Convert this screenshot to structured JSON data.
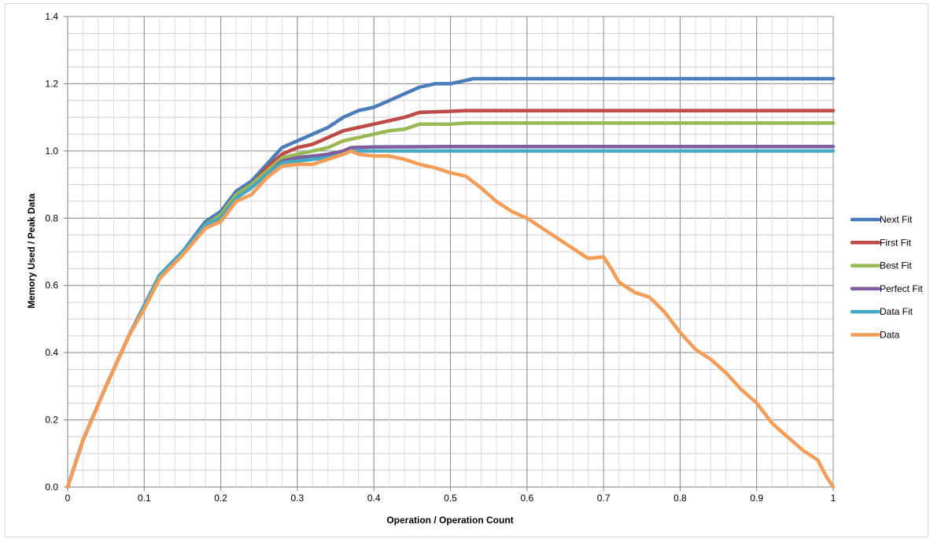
{
  "chart_data": {
    "type": "line",
    "title": "",
    "xlabel": "Operation / Operation Count",
    "ylabel": "Memory Used / Peak Data",
    "xlim": [
      0,
      1
    ],
    "ylim": [
      0,
      1.4
    ],
    "x_ticks": [
      "0",
      "0.1",
      "0.2",
      "0.3",
      "0.4",
      "0.5",
      "0.6",
      "0.7",
      "0.8",
      "0.9",
      "1"
    ],
    "y_ticks": [
      "0.0",
      "0.2",
      "0.4",
      "0.6",
      "0.8",
      "1.0",
      "1.2",
      "1.4"
    ],
    "grid": true,
    "legend_position": "right",
    "series": [
      {
        "name": "Next Fit",
        "color": "#4a7ebb",
        "points": [
          [
            0,
            0
          ],
          [
            0.02,
            0.14
          ],
          [
            0.05,
            0.3
          ],
          [
            0.08,
            0.45
          ],
          [
            0.1,
            0.54
          ],
          [
            0.12,
            0.63
          ],
          [
            0.15,
            0.7
          ],
          [
            0.18,
            0.79
          ],
          [
            0.2,
            0.82
          ],
          [
            0.22,
            0.88
          ],
          [
            0.24,
            0.91
          ],
          [
            0.26,
            0.96
          ],
          [
            0.28,
            1.01
          ],
          [
            0.3,
            1.03
          ],
          [
            0.32,
            1.05
          ],
          [
            0.34,
            1.07
          ],
          [
            0.36,
            1.1
          ],
          [
            0.38,
            1.12
          ],
          [
            0.4,
            1.13
          ],
          [
            0.42,
            1.15
          ],
          [
            0.44,
            1.17
          ],
          [
            0.46,
            1.19
          ],
          [
            0.48,
            1.2
          ],
          [
            0.5,
            1.2
          ],
          [
            0.52,
            1.21
          ],
          [
            0.53,
            1.215
          ],
          [
            0.6,
            1.215
          ],
          [
            0.8,
            1.215
          ],
          [
            1,
            1.215
          ]
        ]
      },
      {
        "name": "First Fit",
        "color": "#be4b48",
        "points": [
          [
            0,
            0
          ],
          [
            0.02,
            0.14
          ],
          [
            0.05,
            0.3
          ],
          [
            0.08,
            0.45
          ],
          [
            0.1,
            0.54
          ],
          [
            0.12,
            0.63
          ],
          [
            0.15,
            0.7
          ],
          [
            0.18,
            0.78
          ],
          [
            0.2,
            0.81
          ],
          [
            0.22,
            0.87
          ],
          [
            0.24,
            0.9
          ],
          [
            0.26,
            0.95
          ],
          [
            0.28,
            0.99
          ],
          [
            0.3,
            1.01
          ],
          [
            0.32,
            1.02
          ],
          [
            0.34,
            1.04
          ],
          [
            0.36,
            1.06
          ],
          [
            0.38,
            1.07
          ],
          [
            0.4,
            1.08
          ],
          [
            0.42,
            1.09
          ],
          [
            0.44,
            1.1
          ],
          [
            0.46,
            1.115
          ],
          [
            0.5,
            1.118
          ],
          [
            0.52,
            1.12
          ],
          [
            0.6,
            1.12
          ],
          [
            0.8,
            1.12
          ],
          [
            1,
            1.12
          ]
        ]
      },
      {
        "name": "Best Fit",
        "color": "#98b954",
        "points": [
          [
            0,
            0
          ],
          [
            0.02,
            0.14
          ],
          [
            0.05,
            0.3
          ],
          [
            0.08,
            0.45
          ],
          [
            0.1,
            0.54
          ],
          [
            0.12,
            0.63
          ],
          [
            0.15,
            0.7
          ],
          [
            0.18,
            0.78
          ],
          [
            0.2,
            0.81
          ],
          [
            0.22,
            0.87
          ],
          [
            0.24,
            0.9
          ],
          [
            0.26,
            0.94
          ],
          [
            0.28,
            0.98
          ],
          [
            0.3,
            0.99
          ],
          [
            0.32,
            1.0
          ],
          [
            0.34,
            1.01
          ],
          [
            0.36,
            1.03
          ],
          [
            0.38,
            1.04
          ],
          [
            0.4,
            1.05
          ],
          [
            0.42,
            1.06
          ],
          [
            0.44,
            1.065
          ],
          [
            0.46,
            1.08
          ],
          [
            0.5,
            1.08
          ],
          [
            0.52,
            1.083
          ],
          [
            0.6,
            1.083
          ],
          [
            0.8,
            1.083
          ],
          [
            1,
            1.083
          ]
        ]
      },
      {
        "name": "Perfect Fit",
        "color": "#7d5fa0",
        "points": [
          [
            0,
            0
          ],
          [
            0.02,
            0.14
          ],
          [
            0.05,
            0.3
          ],
          [
            0.08,
            0.45
          ],
          [
            0.1,
            0.54
          ],
          [
            0.12,
            0.63
          ],
          [
            0.15,
            0.7
          ],
          [
            0.18,
            0.78
          ],
          [
            0.2,
            0.8
          ],
          [
            0.22,
            0.86
          ],
          [
            0.24,
            0.89
          ],
          [
            0.26,
            0.93
          ],
          [
            0.28,
            0.97
          ],
          [
            0.3,
            0.98
          ],
          [
            0.32,
            0.985
          ],
          [
            0.34,
            0.99
          ],
          [
            0.36,
            1.0
          ],
          [
            0.37,
            1.01
          ],
          [
            0.4,
            1.012
          ],
          [
            0.5,
            1.013
          ],
          [
            0.6,
            1.013
          ],
          [
            0.8,
            1.013
          ],
          [
            1,
            1.013
          ]
        ]
      },
      {
        "name": "Data Fit",
        "color": "#46aac4",
        "points": [
          [
            0,
            0
          ],
          [
            0.02,
            0.14
          ],
          [
            0.05,
            0.3
          ],
          [
            0.08,
            0.45
          ],
          [
            0.1,
            0.54
          ],
          [
            0.12,
            0.63
          ],
          [
            0.15,
            0.7
          ],
          [
            0.18,
            0.78
          ],
          [
            0.2,
            0.8
          ],
          [
            0.22,
            0.86
          ],
          [
            0.24,
            0.89
          ],
          [
            0.26,
            0.93
          ],
          [
            0.28,
            0.965
          ],
          [
            0.3,
            0.97
          ],
          [
            0.32,
            0.975
          ],
          [
            0.34,
            0.98
          ],
          [
            0.36,
            0.99
          ],
          [
            0.37,
            1.0
          ],
          [
            0.4,
            1.0
          ],
          [
            0.6,
            1.0
          ],
          [
            0.8,
            1.0
          ],
          [
            1,
            1.0
          ]
        ]
      },
      {
        "name": "Data",
        "color": "#f59d56",
        "points": [
          [
            0,
            0
          ],
          [
            0.02,
            0.14
          ],
          [
            0.05,
            0.3
          ],
          [
            0.08,
            0.45
          ],
          [
            0.1,
            0.53
          ],
          [
            0.12,
            0.62
          ],
          [
            0.15,
            0.69
          ],
          [
            0.18,
            0.77
          ],
          [
            0.2,
            0.79
          ],
          [
            0.22,
            0.85
          ],
          [
            0.24,
            0.87
          ],
          [
            0.26,
            0.92
          ],
          [
            0.28,
            0.955
          ],
          [
            0.3,
            0.96
          ],
          [
            0.32,
            0.96
          ],
          [
            0.34,
            0.975
          ],
          [
            0.36,
            0.99
          ],
          [
            0.37,
            1.0
          ],
          [
            0.38,
            0.99
          ],
          [
            0.4,
            0.985
          ],
          [
            0.42,
            0.985
          ],
          [
            0.44,
            0.975
          ],
          [
            0.46,
            0.96
          ],
          [
            0.48,
            0.95
          ],
          [
            0.5,
            0.935
          ],
          [
            0.52,
            0.925
          ],
          [
            0.54,
            0.89
          ],
          [
            0.56,
            0.85
          ],
          [
            0.58,
            0.82
          ],
          [
            0.6,
            0.8
          ],
          [
            0.62,
            0.77
          ],
          [
            0.64,
            0.74
          ],
          [
            0.66,
            0.71
          ],
          [
            0.68,
            0.68
          ],
          [
            0.7,
            0.685
          ],
          [
            0.71,
            0.65
          ],
          [
            0.72,
            0.61
          ],
          [
            0.74,
            0.58
          ],
          [
            0.76,
            0.565
          ],
          [
            0.78,
            0.52
          ],
          [
            0.8,
            0.46
          ],
          [
            0.82,
            0.41
          ],
          [
            0.84,
            0.38
          ],
          [
            0.86,
            0.34
          ],
          [
            0.88,
            0.29
          ],
          [
            0.9,
            0.25
          ],
          [
            0.92,
            0.19
          ],
          [
            0.94,
            0.15
          ],
          [
            0.96,
            0.11
          ],
          [
            0.98,
            0.08
          ],
          [
            0.99,
            0.035
          ],
          [
            1,
            0
          ]
        ]
      }
    ]
  }
}
